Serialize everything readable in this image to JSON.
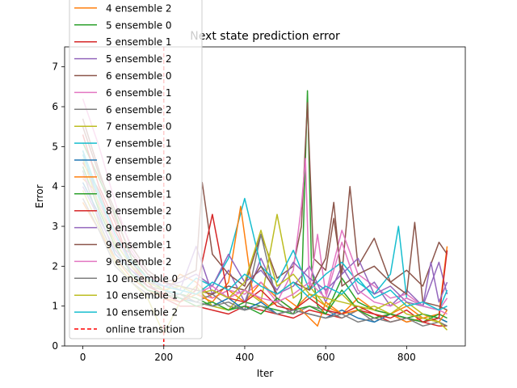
{
  "chart_data": {
    "type": "line",
    "title": "Next state prediction error",
    "xlabel": "Iter",
    "ylabel": "Error",
    "xlim": [
      -45,
      945
    ],
    "ylim": [
      0,
      7.5
    ],
    "xticks": [
      0,
      200,
      400,
      600,
      800
    ],
    "yticks": [
      0,
      1,
      2,
      3,
      4,
      5,
      6,
      7
    ],
    "grid": false,
    "legend_placement": "upper-left",
    "series": [
      {
        "name": "4 ensemble 2",
        "color": "#ff7f0e",
        "x": [
          0,
          40,
          80,
          120,
          160,
          200,
          240,
          280,
          320,
          360,
          400,
          440,
          480,
          520,
          560,
          600,
          640,
          680,
          720,
          760,
          800,
          840,
          880,
          900
        ],
        "y": [
          4.2,
          3.8,
          2.4,
          1.9,
          1.5,
          1.3,
          1.8,
          1.6,
          1.2,
          1.4,
          1.1,
          1.6,
          1.2,
          0.9,
          1.3,
          1.0,
          0.8,
          1.2,
          0.9,
          0.8,
          1.0,
          0.7,
          0.8,
          2.5
        ]
      },
      {
        "name": "5 ensemble 0",
        "color": "#2ca02c",
        "x": [
          0,
          40,
          80,
          120,
          160,
          200,
          240,
          280,
          320,
          360,
          400,
          440,
          480,
          520,
          540,
          555,
          565,
          580,
          600,
          640,
          680,
          720,
          760,
          800,
          840,
          880,
          900
        ],
        "y": [
          5.1,
          4.2,
          3.3,
          2.2,
          1.7,
          1.4,
          1.3,
          1.2,
          1.0,
          0.9,
          1.1,
          1.0,
          0.9,
          0.8,
          1.2,
          6.4,
          2.0,
          1.0,
          0.8,
          1.7,
          1.1,
          0.9,
          0.8,
          0.7,
          0.8,
          0.7,
          0.6
        ]
      },
      {
        "name": "5 ensemble 1",
        "color": "#d62728",
        "x": [
          0,
          40,
          80,
          120,
          160,
          200,
          240,
          280,
          320,
          360,
          400,
          440,
          480,
          520,
          560,
          600,
          640,
          680,
          720,
          760,
          800,
          840,
          880,
          900
        ],
        "y": [
          4.6,
          3.9,
          2.9,
          2.1,
          1.6,
          1.2,
          1.0,
          1.0,
          0.9,
          0.8,
          1.0,
          0.9,
          0.8,
          0.7,
          0.9,
          0.8,
          0.7,
          0.9,
          0.8,
          0.6,
          0.7,
          0.6,
          0.5,
          0.5
        ]
      },
      {
        "name": "5 ensemble 2",
        "color": "#9467bd",
        "x": [
          0,
          40,
          80,
          120,
          160,
          200,
          240,
          280,
          320,
          360,
          400,
          440,
          480,
          520,
          560,
          600,
          640,
          680,
          720,
          760,
          800,
          840,
          880,
          900
        ],
        "y": [
          4.9,
          3.5,
          2.6,
          2.3,
          1.8,
          1.6,
          1.4,
          2.5,
          1.3,
          1.9,
          1.1,
          2.2,
          1.3,
          1.5,
          2.0,
          1.1,
          2.0,
          1.3,
          1.6,
          1.0,
          1.4,
          1.0,
          2.1,
          1.3
        ]
      },
      {
        "name": "6 ensemble 0",
        "color": "#8c564b",
        "x": [
          0,
          40,
          80,
          120,
          160,
          200,
          240,
          280,
          295,
          320,
          360,
          400,
          440,
          480,
          520,
          540,
          555,
          570,
          600,
          620,
          640,
          660,
          680,
          720,
          760,
          800,
          840,
          880,
          900
        ],
        "y": [
          5.5,
          4.3,
          3.4,
          2.5,
          1.9,
          1.6,
          1.7,
          1.9,
          4.1,
          2.3,
          1.8,
          1.5,
          2.8,
          1.7,
          2.0,
          3.0,
          6.1,
          2.2,
          1.9,
          3.2,
          1.8,
          4.0,
          2.0,
          2.7,
          1.6,
          1.9,
          1.5,
          2.6,
          2.3
        ]
      },
      {
        "name": "6 ensemble 1",
        "color": "#e377c2",
        "x": [
          0,
          40,
          80,
          120,
          160,
          200,
          240,
          280,
          320,
          360,
          400,
          440,
          480,
          520,
          540,
          550,
          560,
          580,
          600,
          640,
          680,
          720,
          760,
          800,
          840,
          880,
          900
        ],
        "y": [
          6.2,
          5.0,
          3.6,
          2.4,
          1.8,
          1.5,
          1.4,
          1.3,
          1.2,
          1.4,
          1.3,
          1.6,
          1.1,
          1.9,
          3.5,
          4.7,
          1.4,
          2.8,
          1.3,
          2.9,
          1.8,
          1.5,
          1.2,
          1.3,
          1.0,
          0.9,
          1.2
        ]
      },
      {
        "name": "6 ensemble 2",
        "color": "#7f7f7f",
        "x": [
          0,
          40,
          80,
          120,
          160,
          200,
          240,
          280,
          320,
          360,
          400,
          440,
          480,
          520,
          560,
          600,
          640,
          680,
          720,
          760,
          800,
          840,
          880,
          900
        ],
        "y": [
          4.4,
          3.1,
          2.2,
          1.8,
          1.5,
          1.4,
          1.2,
          1.1,
          1.3,
          1.0,
          0.9,
          2.8,
          1.1,
          0.8,
          1.0,
          0.9,
          0.7,
          0.9,
          0.6,
          0.8,
          0.6,
          0.7,
          0.6,
          0.5
        ]
      },
      {
        "name": "7 ensemble 0",
        "color": "#bcbd22",
        "x": [
          0,
          40,
          80,
          120,
          160,
          200,
          240,
          280,
          320,
          360,
          400,
          440,
          480,
          520,
          560,
          600,
          640,
          680,
          720,
          760,
          800,
          840,
          880,
          900
        ],
        "y": [
          3.9,
          3.0,
          2.1,
          1.6,
          1.2,
          0.3,
          1.1,
          1.5,
          1.0,
          0.9,
          1.4,
          1.1,
          3.3,
          1.2,
          1.5,
          1.0,
          1.3,
          0.9,
          1.0,
          0.8,
          1.1,
          0.8,
          0.6,
          0.5
        ]
      },
      {
        "name": "7 ensemble 1",
        "color": "#17becf",
        "x": [
          0,
          40,
          80,
          120,
          160,
          200,
          240,
          280,
          320,
          360,
          400,
          440,
          480,
          520,
          560,
          600,
          640,
          680,
          720,
          760,
          780,
          800,
          840,
          880,
          900
        ],
        "y": [
          4.8,
          3.7,
          2.8,
          2.0,
          1.6,
          1.4,
          1.3,
          1.7,
          1.5,
          2.2,
          3.7,
          2.0,
          1.6,
          2.4,
          1.4,
          1.8,
          2.1,
          1.6,
          1.3,
          1.8,
          3.0,
          1.2,
          1.0,
          0.9,
          1.4
        ]
      },
      {
        "name": "7 ensemble 2",
        "color": "#1f77b4",
        "x": [
          0,
          40,
          80,
          120,
          160,
          200,
          240,
          280,
          320,
          360,
          400,
          440,
          480,
          520,
          560,
          600,
          640,
          680,
          720,
          760,
          800,
          840,
          880,
          900
        ],
        "y": [
          4.1,
          3.3,
          2.3,
          1.9,
          1.5,
          1.3,
          1.2,
          1.1,
          1.0,
          1.2,
          0.9,
          1.1,
          0.8,
          0.9,
          0.8,
          0.7,
          0.9,
          0.7,
          0.6,
          0.8,
          0.7,
          0.6,
          0.7,
          0.6
        ]
      },
      {
        "name": "8 ensemble 0",
        "color": "#ff7f0e",
        "x": [
          0,
          40,
          80,
          120,
          160,
          200,
          240,
          280,
          320,
          360,
          390,
          420,
          460,
          500,
          540,
          580,
          600,
          640,
          680,
          720,
          760,
          800,
          840,
          880,
          900
        ],
        "y": [
          3.6,
          2.9,
          2.2,
          1.7,
          1.4,
          1.2,
          1.1,
          1.3,
          1.1,
          1.6,
          3.5,
          1.3,
          1.0,
          1.2,
          0.9,
          0.5,
          1.1,
          0.8,
          0.9,
          0.7,
          0.8,
          0.6,
          0.7,
          0.6,
          0.9
        ]
      },
      {
        "name": "8 ensemble 1",
        "color": "#2ca02c",
        "x": [
          0,
          40,
          80,
          120,
          160,
          200,
          240,
          280,
          320,
          360,
          400,
          440,
          480,
          520,
          560,
          600,
          640,
          680,
          720,
          760,
          800,
          840,
          880,
          900
        ],
        "y": [
          4.5,
          3.4,
          2.5,
          1.8,
          1.4,
          1.3,
          1.2,
          1.0,
          1.1,
          0.9,
          1.0,
          0.8,
          1.2,
          0.9,
          1.0,
          0.8,
          1.4,
          0.9,
          0.7,
          0.8,
          0.7,
          0.6,
          0.8,
          0.7
        ]
      },
      {
        "name": "8 ensemble 2",
        "color": "#d62728",
        "x": [
          0,
          40,
          80,
          120,
          160,
          200,
          240,
          280,
          320,
          360,
          400,
          440,
          480,
          520,
          560,
          600,
          640,
          680,
          720,
          760,
          800,
          840,
          880,
          900
        ],
        "y": [
          5.3,
          4.0,
          3.1,
          2.0,
          1.5,
          1.3,
          1.1,
          1.4,
          3.3,
          1.2,
          1.1,
          1.4,
          1.0,
          0.9,
          1.2,
          0.9,
          0.8,
          1.0,
          0.8,
          0.7,
          0.9,
          0.6,
          0.7,
          2.4
        ]
      },
      {
        "name": "9 ensemble 0",
        "color": "#9467bd",
        "x": [
          0,
          40,
          80,
          120,
          160,
          200,
          240,
          280,
          320,
          360,
          400,
          440,
          480,
          520,
          560,
          600,
          640,
          680,
          720,
          760,
          800,
          840,
          860,
          880,
          900
        ],
        "y": [
          4.0,
          3.2,
          2.4,
          1.9,
          1.6,
          1.5,
          1.6,
          1.8,
          1.5,
          2.3,
          1.6,
          1.9,
          1.4,
          2.1,
          1.7,
          1.4,
          1.8,
          2.2,
          1.3,
          1.5,
          1.1,
          1.0,
          2.1,
          1.1,
          1.6
        ]
      },
      {
        "name": "9 ensemble 1",
        "color": "#8c564b",
        "x": [
          0,
          40,
          80,
          120,
          160,
          200,
          240,
          280,
          320,
          360,
          400,
          440,
          480,
          520,
          560,
          600,
          620,
          640,
          680,
          720,
          760,
          800,
          820,
          840,
          880,
          900
        ],
        "y": [
          5.7,
          4.4,
          3.2,
          2.3,
          1.8,
          1.6,
          1.5,
          1.4,
          1.3,
          1.5,
          1.4,
          2.0,
          1.3,
          1.6,
          1.4,
          2.2,
          3.6,
          1.5,
          1.8,
          2.0,
          1.6,
          1.3,
          3.1,
          1.1,
          1.0,
          0.9
        ]
      },
      {
        "name": "9 ensemble 2",
        "color": "#e377c2",
        "x": [
          0,
          40,
          80,
          120,
          160,
          200,
          240,
          280,
          320,
          360,
          400,
          440,
          480,
          520,
          560,
          600,
          640,
          680,
          720,
          760,
          800,
          840,
          880,
          900
        ],
        "y": [
          4.3,
          3.6,
          2.7,
          2.1,
          1.7,
          1.5,
          1.4,
          1.3,
          1.5,
          1.2,
          1.4,
          1.2,
          1.1,
          1.3,
          1.6,
          1.2,
          2.6,
          1.4,
          1.1,
          1.0,
          1.2,
          1.0,
          0.9,
          0.8
        ]
      },
      {
        "name": "10 ensemble 0",
        "color": "#7f7f7f",
        "x": [
          0,
          40,
          80,
          120,
          160,
          200,
          240,
          280,
          320,
          360,
          400,
          440,
          480,
          520,
          560,
          600,
          640,
          680,
          720,
          760,
          800,
          840,
          880,
          900
        ],
        "y": [
          3.7,
          2.9,
          2.0,
          1.6,
          1.3,
          1.2,
          1.3,
          1.1,
          1.0,
          1.1,
          0.9,
          1.0,
          0.8,
          0.9,
          0.8,
          0.7,
          0.8,
          0.6,
          0.7,
          0.6,
          0.7,
          0.5,
          0.6,
          0.5
        ]
      },
      {
        "name": "10 ensemble 1",
        "color": "#bcbd22",
        "x": [
          0,
          40,
          80,
          120,
          160,
          200,
          240,
          280,
          320,
          360,
          400,
          440,
          480,
          520,
          560,
          600,
          640,
          680,
          720,
          760,
          800,
          840,
          880,
          900
        ],
        "y": [
          4.7,
          3.5,
          2.6,
          2.0,
          1.6,
          1.4,
          1.5,
          1.3,
          1.4,
          1.2,
          1.6,
          2.9,
          1.5,
          1.8,
          1.3,
          1.2,
          1.1,
          1.0,
          0.9,
          1.1,
          0.8,
          0.7,
          0.6,
          0.4
        ]
      },
      {
        "name": "10 ensemble 2",
        "color": "#17becf",
        "x": [
          0,
          40,
          80,
          120,
          160,
          200,
          240,
          280,
          320,
          360,
          400,
          440,
          480,
          520,
          560,
          600,
          640,
          680,
          720,
          760,
          800,
          840,
          880,
          900
        ],
        "y": [
          4.9,
          3.8,
          2.8,
          2.1,
          1.7,
          1.5,
          1.4,
          1.3,
          1.6,
          1.4,
          1.8,
          1.5,
          1.3,
          1.6,
          1.2,
          1.5,
          1.3,
          1.7,
          1.2,
          1.4,
          1.0,
          1.1,
          0.9,
          1.0
        ]
      }
    ],
    "reference_line": {
      "name": "online transition",
      "x": 200,
      "color": "#ff0000",
      "style": "dashed"
    }
  }
}
